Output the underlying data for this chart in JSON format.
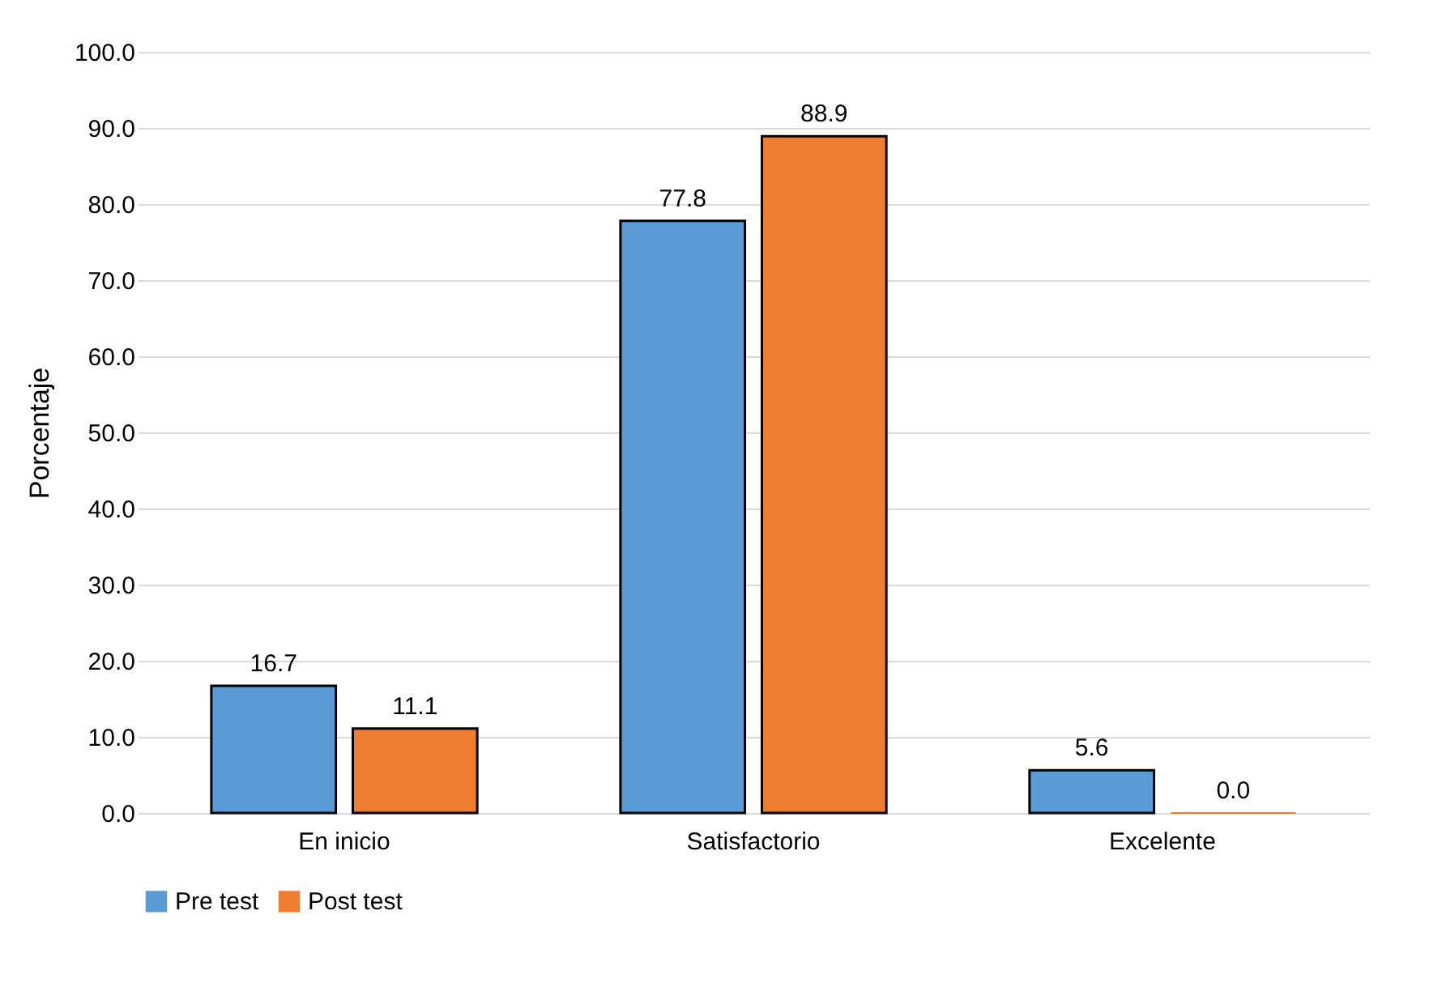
{
  "chart_data": {
    "type": "bar",
    "ylabel": "Porcentaje",
    "categories": [
      "En inicio",
      "Satisfactorio",
      "Excelente"
    ],
    "series": [
      {
        "name": "Pre test",
        "color": "#5b9bd5",
        "values": [
          16.7,
          77.8,
          5.6
        ],
        "value_labels": [
          "16.7",
          "77.8",
          "5.6"
        ]
      },
      {
        "name": "Post test",
        "color": "#ed7d31",
        "values": [
          11.1,
          88.9,
          0
        ],
        "value_labels": [
          "11.1",
          "88.9",
          "0.0"
        ]
      }
    ],
    "ylim": [
      0,
      100
    ],
    "yticks": [
      {
        "value": 0,
        "label": "0.0"
      },
      {
        "value": 10,
        "label": "10.0"
      },
      {
        "value": 20,
        "label": "20.0"
      },
      {
        "value": 30,
        "label": "30.0"
      },
      {
        "value": 40,
        "label": "40.0"
      },
      {
        "value": 50,
        "label": "50.0"
      },
      {
        "value": 60,
        "label": "60.0"
      },
      {
        "value": 70,
        "label": "70.0"
      },
      {
        "value": 80,
        "label": "80.0"
      },
      {
        "value": 90,
        "label": "90.0"
      },
      {
        "value": 100,
        "label": "100.0"
      }
    ],
    "grid": "y",
    "legend": "bottom"
  }
}
